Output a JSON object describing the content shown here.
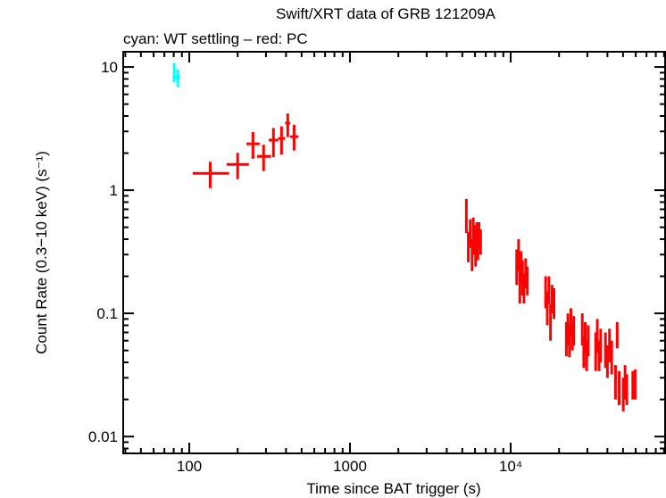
{
  "chart_data": {
    "type": "scatter",
    "title": "Swift/XRT data of GRB 121209A",
    "subtitle": "cyan: WT settling – red: PC",
    "xlabel": "Time since BAT trigger (s)",
    "ylabel": "Count Rate (0.3−10 keV) (s⁻¹)",
    "xscale": "log",
    "yscale": "log",
    "xlim": [
      38.8,
      91400
    ],
    "ylim": [
      0.0073,
      13.3
    ],
    "grid": false,
    "x_ticks": [
      {
        "value": 100,
        "label": "100"
      },
      {
        "value": 1000,
        "label": "1000"
      },
      {
        "value": 10000,
        "label": "10⁴"
      }
    ],
    "y_ticks": [
      {
        "value": 10,
        "label": "10"
      },
      {
        "value": 1,
        "label": "1"
      },
      {
        "value": 0.1,
        "label": "0.1"
      },
      {
        "value": 0.01,
        "label": "0.01"
      }
    ],
    "point_format": [
      "t",
      "t_lo",
      "t_hi",
      "rate",
      "rate_lo",
      "rate_hi"
    ],
    "series": [
      {
        "mode": "WT settling",
        "color": "#00ffff",
        "points": [
          [
            80.5,
            79.5,
            81.5,
            9.2,
            7.5,
            10.8
          ],
          [
            84.7,
            82,
            88,
            8.3,
            6.9,
            9.6
          ]
        ]
      },
      {
        "mode": "PC",
        "color": "#ff0000",
        "points": [
          [
            135,
            105,
            177,
            1.37,
            1.04,
            1.7
          ],
          [
            200,
            171,
            235,
            1.62,
            1.23,
            2.01
          ],
          [
            249,
            227,
            274,
            2.38,
            1.8,
            2.96
          ],
          [
            290,
            264,
            323,
            1.88,
            1.43,
            2.34
          ],
          [
            334,
            312,
            357,
            2.55,
            1.85,
            3.2
          ],
          [
            375,
            357,
            395,
            2.63,
            1.95,
            3.3
          ],
          [
            410,
            395,
            425,
            3.5,
            2.7,
            4.2
          ],
          [
            449,
            423,
            478,
            2.72,
            2.1,
            3.4
          ],
          [
            5300,
            5250,
            5350,
            0.62,
            0.45,
            0.85
          ],
          [
            5450,
            5400,
            5500,
            0.35,
            0.26,
            0.46
          ],
          [
            5600,
            5550,
            5650,
            0.45,
            0.34,
            0.58
          ],
          [
            5750,
            5700,
            5800,
            0.3,
            0.22,
            0.4
          ],
          [
            5850,
            5800,
            5900,
            0.48,
            0.36,
            0.6
          ],
          [
            5950,
            5900,
            6000,
            0.4,
            0.3,
            0.52
          ],
          [
            6050,
            6000,
            6100,
            0.33,
            0.24,
            0.42
          ],
          [
            6150,
            6100,
            6200,
            0.42,
            0.32,
            0.55
          ],
          [
            6250,
            6200,
            6300,
            0.36,
            0.27,
            0.47
          ],
          [
            6350,
            6300,
            6400,
            0.44,
            0.34,
            0.55
          ],
          [
            6500,
            6400,
            6600,
            0.38,
            0.3,
            0.48
          ],
          [
            10900,
            10800,
            11000,
            0.25,
            0.17,
            0.33
          ],
          [
            11200,
            11100,
            11300,
            0.3,
            0.22,
            0.4
          ],
          [
            11400,
            11300,
            11500,
            0.18,
            0.12,
            0.25
          ],
          [
            11600,
            11500,
            11700,
            0.24,
            0.17,
            0.32
          ],
          [
            11850,
            11700,
            12000,
            0.2,
            0.14,
            0.27
          ],
          [
            12100,
            12000,
            12200,
            0.16,
            0.12,
            0.21
          ],
          [
            12400,
            12300,
            12500,
            0.22,
            0.16,
            0.28
          ],
          [
            12700,
            12600,
            12900,
            0.19,
            0.14,
            0.24
          ],
          [
            16500,
            16300,
            16700,
            0.15,
            0.11,
            0.2
          ],
          [
            16900,
            16700,
            17100,
            0.11,
            0.08,
            0.15
          ],
          [
            17300,
            17100,
            17500,
            0.16,
            0.12,
            0.2
          ],
          [
            17700,
            17500,
            17900,
            0.09,
            0.06,
            0.12
          ],
          [
            18100,
            17900,
            18300,
            0.13,
            0.1,
            0.17
          ],
          [
            18600,
            18400,
            18800,
            0.12,
            0.09,
            0.16
          ],
          [
            22200,
            22000,
            22400,
            0.065,
            0.045,
            0.085
          ],
          [
            22700,
            22500,
            22900,
            0.075,
            0.055,
            0.1
          ],
          [
            23200,
            23000,
            23400,
            0.06,
            0.044,
            0.08
          ],
          [
            23700,
            23500,
            23900,
            0.085,
            0.065,
            0.11
          ],
          [
            24200,
            24000,
            24400,
            0.065,
            0.05,
            0.085
          ],
          [
            24700,
            24500,
            24900,
            0.075,
            0.055,
            0.095
          ],
          [
            27900,
            27700,
            28100,
            0.075,
            0.055,
            0.1
          ],
          [
            28500,
            28300,
            28700,
            0.05,
            0.036,
            0.065
          ],
          [
            29100,
            28900,
            29300,
            0.065,
            0.048,
            0.085
          ],
          [
            29700,
            29500,
            29900,
            0.045,
            0.034,
            0.06
          ],
          [
            30400,
            30200,
            30600,
            0.06,
            0.045,
            0.08
          ],
          [
            33800,
            33600,
            34000,
            0.05,
            0.034,
            0.07
          ],
          [
            34600,
            34400,
            34800,
            0.065,
            0.048,
            0.09
          ],
          [
            35500,
            35300,
            35700,
            0.045,
            0.034,
            0.06
          ],
          [
            36300,
            36100,
            36500,
            0.055,
            0.04,
            0.075
          ],
          [
            38900,
            38700,
            39100,
            0.05,
            0.036,
            0.07
          ],
          [
            40000,
            39800,
            40200,
            0.04,
            0.03,
            0.055
          ],
          [
            41200,
            41000,
            41400,
            0.055,
            0.04,
            0.075
          ],
          [
            42500,
            42300,
            42700,
            0.045,
            0.032,
            0.06
          ],
          [
            44900,
            44700,
            45100,
            0.028,
            0.02,
            0.038
          ],
          [
            46000,
            45800,
            46200,
            0.067,
            0.052,
            0.085
          ],
          [
            47300,
            47100,
            47500,
            0.025,
            0.018,
            0.034
          ],
          [
            50200,
            50000,
            50400,
            0.022,
            0.016,
            0.03
          ],
          [
            51500,
            51300,
            51700,
            0.028,
            0.02,
            0.038
          ],
          [
            52800,
            52600,
            53000,
            0.024,
            0.018,
            0.032
          ],
          [
            57500,
            57300,
            57700,
            0.025,
            0.02,
            0.034
          ],
          [
            59500,
            59300,
            59700,
            0.028,
            0.02,
            0.035
          ]
        ]
      }
    ]
  }
}
